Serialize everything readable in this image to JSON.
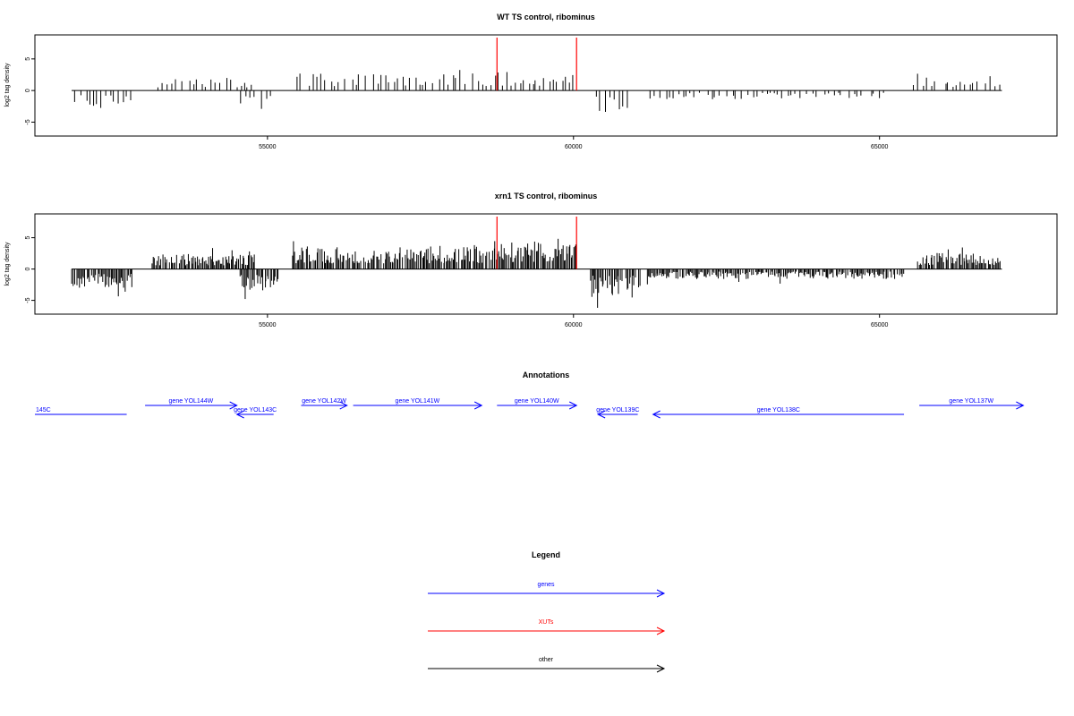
{
  "chart_data": [
    {
      "type": "bar",
      "title": "WT TS control, ribominus",
      "ylabel": "log2 tag density",
      "xlabel": "",
      "xlim": [
        51200,
        67900
      ],
      "ylim": [
        -7.2,
        8.8
      ],
      "xticks": [
        55000,
        60000,
        65000
      ],
      "yticks": [
        -5,
        0,
        5
      ],
      "markers": {
        "color": "#ff0000",
        "x": [
          58750,
          60050
        ]
      },
      "series": [
        {
          "color": "#000000",
          "density": 0.9,
          "scale": 0.75
        }
      ],
      "segments": [
        {
          "x": [
            51800,
            52800
          ],
          "sign": -1,
          "amp": 2.8
        },
        {
          "x": [
            53200,
            54800
          ],
          "sign": 1,
          "amp": 2.0
        },
        {
          "x": [
            54550,
            55100
          ],
          "sign": -1,
          "amp": 3.4
        },
        {
          "x": [
            55450,
            58750
          ],
          "sign": 1,
          "amp": 2.8
        },
        {
          "x": [
            58750,
            60050
          ],
          "sign": 1,
          "amp": 3.0
        },
        {
          "x": [
            60350,
            61050
          ],
          "sign": -1,
          "amp": 3.6
        },
        {
          "x": [
            61200,
            65100
          ],
          "sign": -1,
          "amp": 1.4
        },
        {
          "x": [
            65550,
            67000
          ],
          "sign": 1,
          "amp": 1.8
        }
      ]
    },
    {
      "type": "bar",
      "title": "xrn1 TS control, ribominus",
      "ylabel": "log2 tag density",
      "xlabel": "",
      "xlim": [
        51200,
        67900
      ],
      "ylim": [
        -7.2,
        8.8
      ],
      "xticks": [
        55000,
        60000,
        65000
      ],
      "yticks": [
        -5,
        0,
        5
      ],
      "markers": {
        "color": "#ff0000",
        "x": [
          58750,
          60050
        ]
      },
      "series": [
        {
          "color": "#000000",
          "density": 3.2,
          "scale": 0.75
        }
      ],
      "segments": [
        {
          "x": [
            51800,
            52800
          ],
          "sign": -1,
          "amp": 3.0
        },
        {
          "x": [
            53100,
            54800
          ],
          "sign": 1,
          "amp": 2.4
        },
        {
          "x": [
            54550,
            55200
          ],
          "sign": -1,
          "amp": 3.8
        },
        {
          "x": [
            55400,
            58750
          ],
          "sign": 1,
          "amp": 3.6
        },
        {
          "x": [
            58750,
            60050
          ],
          "sign": 1,
          "amp": 4.4
        },
        {
          "x": [
            60250,
            61100
          ],
          "sign": -1,
          "amp": 4.2
        },
        {
          "x": [
            61200,
            65400
          ],
          "sign": -1,
          "amp": 1.6
        },
        {
          "x": [
            65600,
            67000
          ],
          "sign": 1,
          "amp": 2.6
        }
      ]
    }
  ],
  "annotations": {
    "title": "Annotations",
    "genes": [
      {
        "label": "145C",
        "start": 51200,
        "end": 52700,
        "strand": "-",
        "color": "#0000ff"
      },
      {
        "label": "gene YOL144W",
        "start": 53000,
        "end": 54500,
        "strand": "+",
        "color": "#0000ff"
      },
      {
        "label": "gene YOL143C",
        "start": 54500,
        "end": 55100,
        "strand": "-",
        "color": "#0000ff"
      },
      {
        "label": "gene YOL142W",
        "start": 55550,
        "end": 56300,
        "strand": "+",
        "color": "#0000ff"
      },
      {
        "label": "gene YOL141W",
        "start": 56400,
        "end": 58500,
        "strand": "+",
        "color": "#0000ff"
      },
      {
        "label": "gene YOL140W",
        "start": 58750,
        "end": 60050,
        "strand": "+",
        "color": "#0000ff"
      },
      {
        "label": "gene YOL139C",
        "start": 60400,
        "end": 61050,
        "strand": "-",
        "color": "#0000ff"
      },
      {
        "label": "gene YOL138C",
        "start": 61300,
        "end": 65400,
        "strand": "-",
        "color": "#0000ff"
      },
      {
        "label": "gene YOL137W",
        "start": 65650,
        "end": 67350,
        "strand": "+",
        "color": "#0000ff"
      }
    ]
  },
  "legend": {
    "title": "Legend",
    "items": [
      {
        "label": "genes",
        "color": "#0000ff"
      },
      {
        "label": "XUTs",
        "color": "#ff0000"
      },
      {
        "label": "other",
        "color": "#000000"
      }
    ]
  }
}
